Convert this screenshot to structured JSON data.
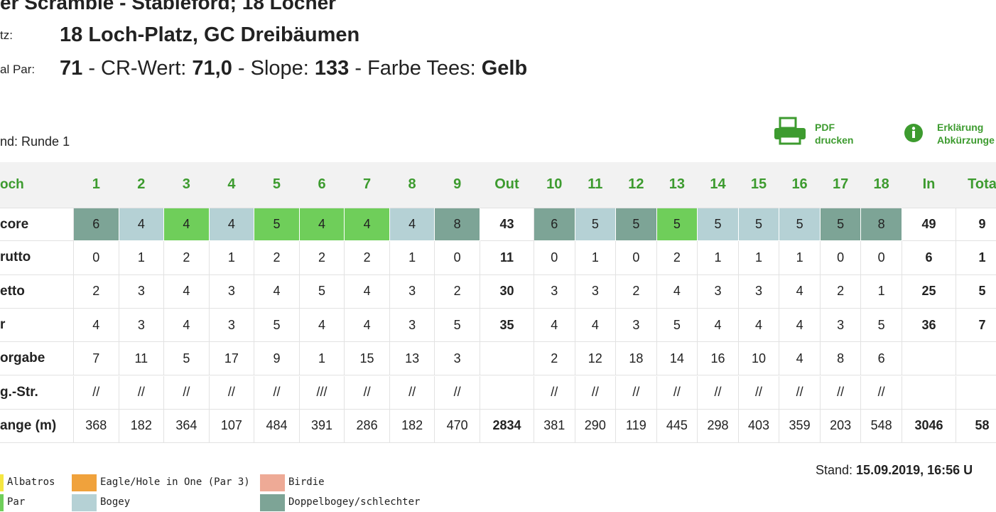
{
  "title": "er Scramble - Stableford; 18 Löcher",
  "course": {
    "label": "tz:",
    "value": "18 Loch-Platz, GC Dreibäumen"
  },
  "par_line": {
    "label": "al Par:",
    "parts": [
      {
        "text": "71",
        "bold": true
      },
      {
        "text": " - CR-Wert: ",
        "bold": false
      },
      {
        "text": "71,0",
        "bold": true
      },
      {
        "text": " - Slope: ",
        "bold": false
      },
      {
        "text": "133",
        "bold": true
      },
      {
        "text": " - Farbe Tees: ",
        "bold": false
      },
      {
        "text": "Gelb",
        "bold": true
      }
    ]
  },
  "round": "nd: Runde 1",
  "actions": [
    {
      "lines": [
        "PDF",
        "drucken"
      ]
    },
    {
      "lines": [
        "Erklärung",
        "Abkürzunge"
      ]
    }
  ],
  "table": {
    "columns": [
      "och",
      "1",
      "2",
      "3",
      "4",
      "5",
      "6",
      "7",
      "8",
      "9",
      "Out",
      "10",
      "11",
      "12",
      "13",
      "14",
      "15",
      "16",
      "17",
      "18",
      "In",
      "Tota"
    ],
    "rows": [
      {
        "label": "core",
        "cells": [
          6,
          4,
          4,
          4,
          5,
          4,
          4,
          4,
          8,
          43,
          6,
          5,
          5,
          5,
          5,
          5,
          5,
          5,
          8,
          49,
          "9"
        ],
        "colors": [
          "#7da496",
          "#b5d1d5",
          "#6fce5a",
          "#b5d1d5",
          "#6fce5a",
          "#6fce5a",
          "#6fce5a",
          "#b5d1d5",
          "#7da496",
          null,
          "#7da496",
          "#b5d1d5",
          "#7da496",
          "#6fce5a",
          "#b5d1d5",
          "#b5d1d5",
          "#b5d1d5",
          "#7da496",
          "#7da496",
          null,
          null
        ]
      },
      {
        "label": "rutto",
        "cells": [
          0,
          1,
          2,
          1,
          2,
          2,
          2,
          1,
          0,
          11,
          0,
          1,
          0,
          2,
          1,
          1,
          1,
          0,
          0,
          6,
          "1"
        ]
      },
      {
        "label": "etto",
        "cells": [
          2,
          3,
          4,
          3,
          4,
          5,
          4,
          3,
          2,
          30,
          3,
          3,
          2,
          4,
          3,
          3,
          4,
          2,
          1,
          25,
          "5"
        ]
      },
      {
        "label": "r",
        "cells": [
          4,
          3,
          4,
          3,
          5,
          4,
          4,
          3,
          5,
          35,
          4,
          4,
          3,
          5,
          4,
          4,
          4,
          3,
          5,
          36,
          "7"
        ]
      },
      {
        "label": "orgabe",
        "cells": [
          7,
          11,
          5,
          17,
          9,
          1,
          15,
          13,
          3,
          null,
          2,
          12,
          18,
          14,
          16,
          10,
          4,
          8,
          6,
          null,
          null
        ]
      },
      {
        "label": "g.-Str.",
        "cells": [
          "//",
          "//",
          "//",
          "//",
          "//",
          "///",
          "//",
          "//",
          "//",
          null,
          "//",
          "//",
          "//",
          "//",
          "//",
          "//",
          "//",
          "//",
          "//",
          null,
          null
        ]
      },
      {
        "label": "ange (m)",
        "cells": [
          368,
          182,
          364,
          107,
          484,
          391,
          286,
          182,
          470,
          2834,
          381,
          290,
          119,
          445,
          298,
          403,
          359,
          203,
          548,
          3046,
          "58"
        ]
      }
    ]
  },
  "legend": [
    {
      "label": "Albatros",
      "color": "#f5e642"
    },
    {
      "label": "Eagle/Hole in One (Par 3)",
      "color": "#f0a23c"
    },
    {
      "label": "Birdie",
      "color": "#eeaa96"
    },
    {
      "label": "Par",
      "color": "#6fce5a"
    },
    {
      "label": "Bogey",
      "color": "#b5d1d5"
    },
    {
      "label": "Doppelbogey/schlechter",
      "color": "#7da496"
    }
  ],
  "stand": {
    "label": "Stand: ",
    "value": "15.09.2019, 16:56 U"
  }
}
